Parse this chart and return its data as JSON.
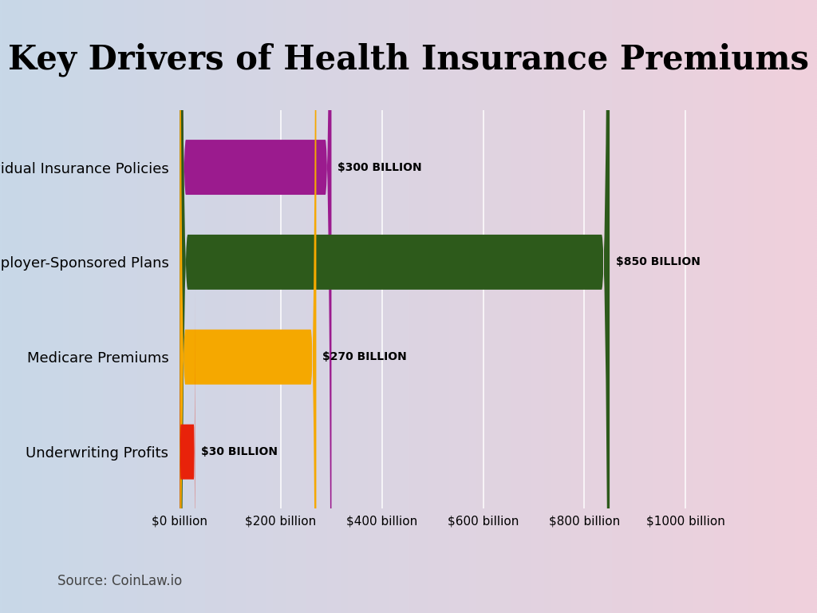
{
  "title": "Key Drivers of Health Insurance Premiums",
  "categories": [
    "Individual Insurance Policies",
    "Employer-Sponsored Plans",
    "Medicare Premiums",
    "Underwriting Profits"
  ],
  "values": [
    300,
    850,
    270,
    30
  ],
  "bar_colors": [
    "#9B1B8E",
    "#2D5A1B",
    "#F5A800",
    "#E8220A"
  ],
  "value_labels": [
    "$300 BILLION",
    "$850 BILLION",
    "$270 BILLION",
    "$30 BILLION"
  ],
  "xlim": [
    0,
    1050
  ],
  "xtick_values": [
    0,
    200,
    400,
    600,
    800,
    1000
  ],
  "xtick_labels": [
    "$0 billion",
    "$200 billion",
    "$400 billion",
    "$600 billion",
    "$800 billion",
    "$1000 billion"
  ],
  "source_text": "Source: CoinLaw.io",
  "title_fontsize": 30,
  "label_fontsize": 13,
  "value_fontsize": 10,
  "xtick_fontsize": 11,
  "source_fontsize": 12,
  "bg_color_tl": "#C8D8E8",
  "bg_color_tr": "#E8E8F0",
  "bg_color_bl": "#C8D8E8",
  "bg_color_br": "#F0D0D8",
  "bar_height": 0.58
}
